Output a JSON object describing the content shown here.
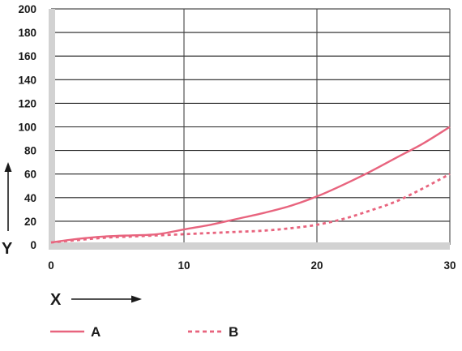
{
  "chart_data": {
    "type": "line",
    "title": "",
    "xlabel": "X",
    "ylabel": "Y",
    "xlim": [
      0,
      30
    ],
    "ylim": [
      0,
      200
    ],
    "x_ticks": [
      0,
      10,
      20,
      30
    ],
    "y_ticks": [
      0,
      20,
      40,
      60,
      80,
      100,
      120,
      140,
      160,
      180,
      200
    ],
    "x_tick_labels": [
      "0",
      "10",
      "20",
      "30"
    ],
    "y_tick_labels": [
      "0",
      "20",
      "40",
      "60",
      "80",
      "100",
      "120",
      "140",
      "160",
      "180",
      "200"
    ],
    "grid": true,
    "legend_position": "bottom",
    "series": [
      {
        "name": "A",
        "style": "solid",
        "color": "#e8647e",
        "x": [
          0,
          2,
          4,
          6,
          8,
          10,
          12,
          14,
          16,
          18,
          20,
          22,
          24,
          26,
          28,
          30
        ],
        "y": [
          2,
          5,
          7,
          8,
          9,
          13,
          17,
          22,
          27,
          33,
          41,
          51,
          62,
          74,
          86,
          100
        ]
      },
      {
        "name": "B",
        "style": "dashed",
        "color": "#e8647e",
        "x": [
          0,
          2,
          4,
          6,
          8,
          10,
          12,
          14,
          16,
          18,
          20,
          22,
          24,
          26,
          28,
          30
        ],
        "y": [
          2,
          4,
          6,
          7,
          8,
          9,
          10,
          11,
          12,
          14,
          17,
          22,
          29,
          37,
          48,
          60
        ]
      }
    ]
  }
}
